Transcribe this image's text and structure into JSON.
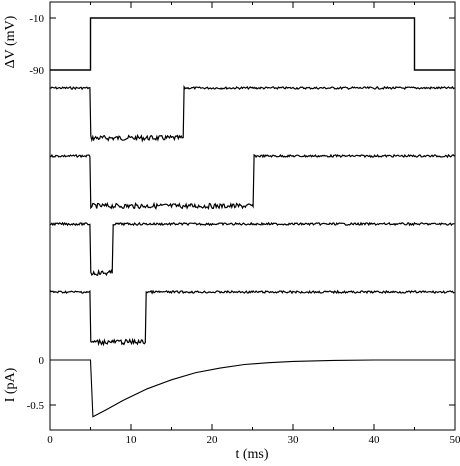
{
  "chart_data": [
    {
      "type": "line",
      "panel": "voltage",
      "ylabel": "ΔV  (mV)",
      "y_ticks": [
        "-10",
        "-90"
      ],
      "y_tick_values": [
        -10,
        -90
      ],
      "ylim": [
        -100,
        0
      ],
      "xlim": [
        0,
        50
      ],
      "series": [
        {
          "x": [
            0,
            5,
            5,
            45,
            45,
            50
          ],
          "y": [
            -90,
            -90,
            -10,
            -10,
            -90,
            -90
          ]
        }
      ]
    },
    {
      "type": "line",
      "panel": "single-channel-traces",
      "description_free": true,
      "xlim": [
        0,
        50
      ],
      "traces": [
        {
          "baseline": 0,
          "open_level": -1,
          "open_start": 5,
          "open_end": 16.5,
          "noise": 0.06
        },
        {
          "baseline": 0,
          "open_level": -1,
          "open_start": 5,
          "open_end": 25.2,
          "noise": 0.06
        },
        {
          "baseline": 0,
          "open_level": -1,
          "open_start": 5,
          "open_end": 7.8,
          "noise": 0.06
        },
        {
          "baseline": 0,
          "open_level": -1,
          "open_start": 5,
          "open_end": 11.8,
          "noise": 0.06
        }
      ]
    },
    {
      "type": "line",
      "panel": "ensemble-current",
      "ylabel": "I  (pA)",
      "y_ticks": [
        "0",
        "-0.5"
      ],
      "y_tick_values": [
        0,
        -0.5
      ],
      "ylim": [
        -0.72,
        0.1
      ],
      "xlim": [
        0,
        50
      ],
      "xlabel": "t  (ms)",
      "x_ticks": [
        "0",
        "10",
        "20",
        "30",
        "40",
        "50"
      ],
      "x_tick_values": [
        0,
        10,
        20,
        30,
        40,
        50
      ],
      "series": [
        {
          "x": [
            0,
            5,
            5.3,
            7,
            9,
            12,
            15,
            18,
            21,
            24,
            27,
            30,
            35,
            40,
            45,
            50
          ],
          "y": [
            0,
            0,
            -0.63,
            -0.55,
            -0.45,
            -0.32,
            -0.22,
            -0.14,
            -0.09,
            -0.05,
            -0.03,
            -0.015,
            -0.005,
            0,
            0,
            0
          ]
        }
      ]
    }
  ]
}
